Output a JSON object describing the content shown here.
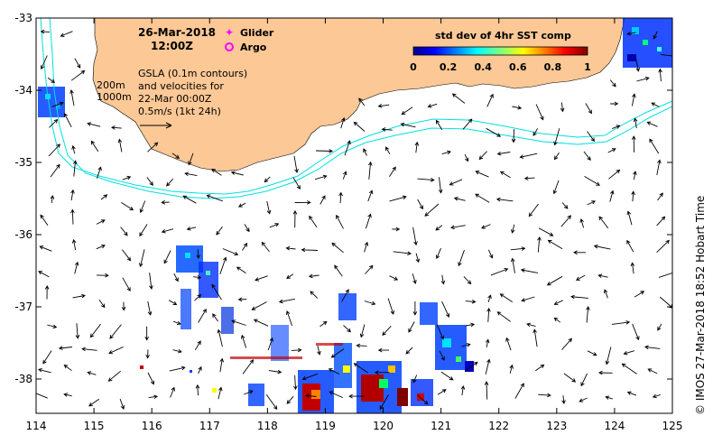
{
  "map": {
    "date": "26-Mar-2018",
    "time": "12:00Z",
    "legend": {
      "glider_label": "Glider",
      "glider_color": "#ff00ff",
      "argo_label": "Argo",
      "argo_color": "#ff00ff"
    },
    "depth_labels": [
      "200m",
      "1000m"
    ],
    "gsla_note": [
      "GSLA (0.1m contours)",
      "and velocities for",
      "22-Mar 00:00Z",
      "0.5m/s (1kt 24h)"
    ],
    "colorbar": {
      "title": "std dev of 4hr SST comp",
      "ticks": [
        "0",
        "0.2",
        "0.4",
        "0.6",
        "0.8",
        "1"
      ]
    },
    "credit": "© IMOS 27-Mar-2018 18:52 Hobart Time",
    "x_ticks": [
      "114",
      "115",
      "116",
      "117",
      "118",
      "119",
      "120",
      "121",
      "122",
      "123",
      "124",
      "125"
    ],
    "y_ticks": [
      "-33",
      "-34",
      "-35",
      "-36",
      "-37",
      "-38"
    ],
    "colors": {
      "land": "#fcc896",
      "contour": "#00e0e0",
      "arrow": "#000000",
      "frame": "#000000"
    }
  }
}
